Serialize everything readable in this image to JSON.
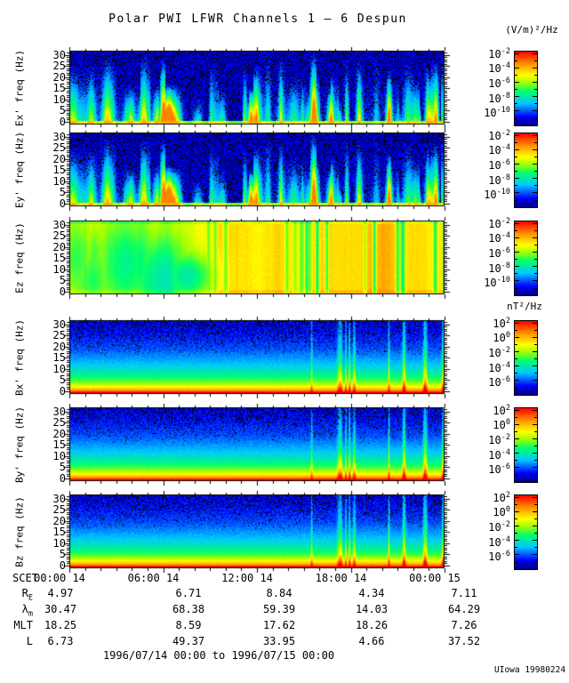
{
  "title": "Polar PWI LFWR Channels 1 — 6 Despun",
  "credit": "UIowa 19980224",
  "date_range": "1996/07/14 00:00 to 1996/07/15 00:00",
  "colorbars": {
    "e": {
      "unit": "(V/m)²/Hz",
      "scale": "log",
      "tick_base": "10",
      "tick_exponents": [
        "-2",
        "-4",
        "-6",
        "-8",
        "-10"
      ]
    },
    "b": {
      "unit": "nT²/Hz",
      "scale": "log",
      "tick_base": "10",
      "tick_exponents": [
        "2",
        "0",
        "-2",
        "-4",
        "-6"
      ]
    }
  },
  "colors": {
    "background": "#ffffff",
    "frame": "#000000",
    "below_min": "#000000",
    "colormap": [
      "#000082",
      "#0000ff",
      "#00c8ff",
      "#00ff6e",
      "#a0ff00",
      "#ffff00",
      "#ff8c00",
      "#ff0000"
    ],
    "colormap_positions": [
      0,
      0.12,
      0.3,
      0.46,
      0.58,
      0.68,
      0.84,
      1
    ]
  },
  "chart_data": {
    "type": "heatmap",
    "subtype": "spectrogram",
    "title": "Polar PWI LFWR Channels 1 — 6 Despun",
    "time_range": "1996/07/14 00:00 to 1996/07/15 00:00",
    "x_axis": {
      "label": "SCET",
      "minor_step_hours": 1,
      "ticks": [
        {
          "hour": 0,
          "label": "00:00 14"
        },
        {
          "hour": 6,
          "label": "06:00 14"
        },
        {
          "hour": 12,
          "label": "12:00 14"
        },
        {
          "hour": 18,
          "label": "18:00 14"
        },
        {
          "hour": 24,
          "label": "00:00 15"
        }
      ]
    },
    "y_axis": {
      "unit": "Hz",
      "range_hz": [
        0,
        31
      ],
      "ticks": [
        30,
        25,
        20,
        15,
        10,
        5,
        0
      ],
      "minor_step": 1
    },
    "panels": [
      {
        "key": "ex",
        "field": "Ex'",
        "ylabel": "Ex' freq (Hz)",
        "group": "e",
        "pattern": "e_bursty",
        "pattern_seed": 41,
        "noise_seed": 101,
        "summary": "Dark blue/black background with intermittent cyan-green broadband electric-field bursts and a persistent green enhancement near 0 Hz; values span ~1e-10 to 1e-2 (V/m)2/Hz"
      },
      {
        "key": "ey",
        "field": "Ey'",
        "ylabel": "Ey' freq (Hz)",
        "group": "e",
        "pattern": "e_bursty",
        "pattern_seed": 41,
        "noise_seed": 202,
        "summary": "Same bursty structure as Ex': vertical cyan streaks on dark background, quiet black interval near 13:00-15:00, activity resuming after 15:00"
      },
      {
        "key": "ez",
        "field": "Ez",
        "ylabel": "Ez freq (Hz)",
        "group": "e",
        "pattern": "ez_smooth",
        "pattern_seed": 77,
        "noise_seed": 303,
        "summary": "High continuous spectral density (yellow/orange ~1e-4) at all frequencies, with smooth green/cyan quieter patches before ~07:00 and narrow green dropouts mid-interval"
      },
      {
        "key": "bx",
        "field": "Bx'",
        "ylabel": "Bx' freq (Hz)",
        "group": "b",
        "pattern": "b_gradient",
        "pattern_seed": 53,
        "noise_seed": 404,
        "summary": "Magnetic spectral density decreasing with frequency: red/orange (>1e2 nT2/Hz) below ~3 Hz grading through green/cyan to dark blue at 30 Hz; narrow yellow-green interference spikes after ~19:00"
      },
      {
        "key": "by",
        "field": "By'",
        "ylabel": "By' freq (Hz)",
        "group": "b",
        "pattern": "b_gradient",
        "pattern_seed": 53,
        "noise_seed": 505,
        "summary": "Same falling spectrum as Bx' with red band at lowest frequencies and vertical interference lines near the end of the day"
      },
      {
        "key": "bz",
        "field": "Bz",
        "ylabel": "Bz freq (Hz)",
        "group": "b",
        "pattern": "b_gradient",
        "pattern_seed": 53,
        "noise_seed": 606,
        "summary": "Same falling spectrum as Bx'/By'; red 0-3 Hz band, blue above ~15 Hz, spikes after ~19:00"
      }
    ],
    "ephemeris": {
      "rows": [
        {
          "label": {
            "base": "R",
            "sub": "E"
          },
          "values": [
            "4.97",
            "6.71",
            "8.84",
            "4.34",
            "7.11"
          ]
        },
        {
          "label": {
            "base": "λ",
            "sub": "m"
          },
          "values": [
            "30.47",
            "68.38",
            "59.39",
            "14.03",
            "64.29"
          ]
        },
        {
          "label": {
            "base": "MLT",
            "sub": ""
          },
          "values": [
            "18.25",
            "8.59",
            "17.62",
            "18.26",
            "7.26"
          ]
        },
        {
          "label": {
            "base": "L",
            "sub": ""
          },
          "values": [
            "6.73",
            "49.37",
            "33.95",
            "4.66",
            "37.52"
          ]
        }
      ]
    }
  }
}
